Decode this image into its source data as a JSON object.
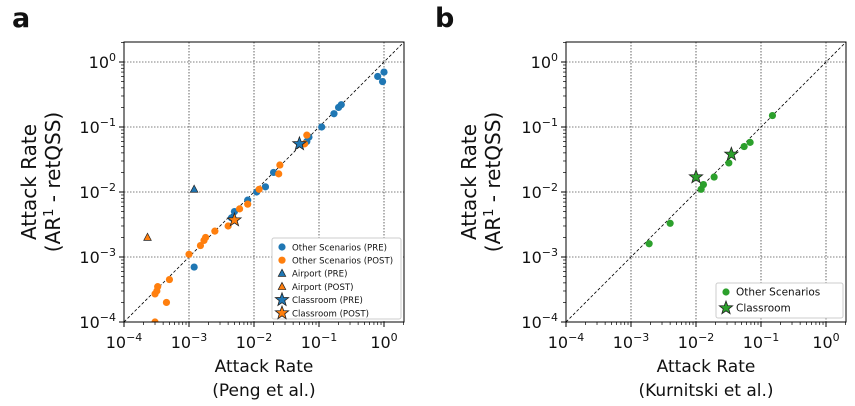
{
  "panels": [
    {
      "letter": "a",
      "ylabel_line1": "Attack Rate",
      "ylabel_line2_pre": "(AR",
      "ylabel_sup": "1",
      "ylabel_line2_post": " - retQSS)",
      "xlabel_line1": "Attack Rate",
      "xlabel_line2": "(Peng et al.)"
    },
    {
      "letter": "b",
      "ylabel_line1": "Attack Rate",
      "ylabel_line2_pre": "(AR",
      "ylabel_sup": "1",
      "ylabel_line2_post": " - retQSS)",
      "xlabel_line1": "Attack Rate",
      "xlabel_line2": "(Kurnitski et al.)"
    }
  ],
  "tick_labels": [
    "10−4",
    "10−3",
    "10−2",
    "10−1",
    "100"
  ],
  "colors": {
    "pre": "#1f77b4",
    "post": "#ff7f0e",
    "green": "#2ca02c"
  },
  "chart_data": [
    {
      "type": "scatter",
      "scale": "log-log",
      "xlim": [
        0.0001,
        2
      ],
      "ylim": [
        0.0001,
        2
      ],
      "grid": true,
      "reference_line": "y = x (dashed)",
      "legend_position": "bottom-right",
      "series": [
        {
          "name": "Other Scenarios (PRE)",
          "marker": "circle",
          "color": "#1f77b4",
          "points": [
            [
              0.0012,
              0.0007
            ],
            [
              0.0045,
              0.004
            ],
            [
              0.005,
              0.005
            ],
            [
              0.008,
              0.0075
            ],
            [
              0.011,
              0.01
            ],
            [
              0.015,
              0.012
            ],
            [
              0.02,
              0.02
            ],
            [
              0.065,
              0.06
            ],
            [
              0.07,
              0.07
            ],
            [
              0.11,
              0.1
            ],
            [
              0.17,
              0.16
            ],
            [
              0.2,
              0.2
            ],
            [
              0.22,
              0.22
            ],
            [
              0.8,
              0.6
            ],
            [
              0.95,
              0.5
            ],
            [
              1.0,
              0.7
            ]
          ]
        },
        {
          "name": "Other Scenarios (POST)",
          "marker": "circle",
          "color": "#ff7f0e",
          "points": [
            [
              0.0003,
              0.0001
            ],
            [
              0.0003,
              0.00027
            ],
            [
              0.00032,
              0.0003
            ],
            [
              0.00033,
              0.00035
            ],
            [
              0.00045,
              0.0002
            ],
            [
              0.0005,
              0.00045
            ],
            [
              0.001,
              0.0011
            ],
            [
              0.0015,
              0.0015
            ],
            [
              0.0017,
              0.0018
            ],
            [
              0.0018,
              0.002
            ],
            [
              0.0025,
              0.0025
            ],
            [
              0.004,
              0.003
            ],
            [
              0.006,
              0.0055
            ],
            [
              0.008,
              0.0065
            ],
            [
              0.012,
              0.011
            ],
            [
              0.024,
              0.019
            ],
            [
              0.025,
              0.026
            ],
            [
              0.06,
              0.055
            ],
            [
              0.065,
              0.075
            ]
          ]
        },
        {
          "name": "Airport (PRE)",
          "marker": "triangle",
          "color": "#1f77b4",
          "points": [
            [
              0.0012,
              0.011
            ]
          ]
        },
        {
          "name": "Airport (POST)",
          "marker": "triangle",
          "color": "#ff7f0e",
          "points": [
            [
              0.00023,
              0.002
            ]
          ]
        },
        {
          "name": "Classroom (PRE)",
          "marker": "star",
          "color": "#1f77b4",
          "points": [
            [
              0.05,
              0.055
            ]
          ]
        },
        {
          "name": "Classroom (POST)",
          "marker": "star",
          "color": "#ff7f0e",
          "points": [
            [
              0.005,
              0.0037
            ]
          ]
        }
      ]
    },
    {
      "type": "scatter",
      "scale": "log-log",
      "xlim": [
        0.0001,
        2
      ],
      "ylim": [
        0.0001,
        2
      ],
      "grid": true,
      "reference_line": "y = x (dashed)",
      "legend_position": "bottom-right",
      "series": [
        {
          "name": "Other Scenarios",
          "marker": "circle",
          "color": "#2ca02c",
          "points": [
            [
              0.0019,
              0.0016
            ],
            [
              0.004,
              0.0033
            ],
            [
              0.012,
              0.011
            ],
            [
              0.013,
              0.013
            ],
            [
              0.019,
              0.017
            ],
            [
              0.032,
              0.028
            ],
            [
              0.055,
              0.05
            ],
            [
              0.068,
              0.058
            ],
            [
              0.15,
              0.15
            ]
          ]
        },
        {
          "name": "Classroom",
          "marker": "star",
          "color": "#2ca02c",
          "points": [
            [
              0.01,
              0.017
            ],
            [
              0.035,
              0.038
            ]
          ]
        }
      ]
    }
  ]
}
